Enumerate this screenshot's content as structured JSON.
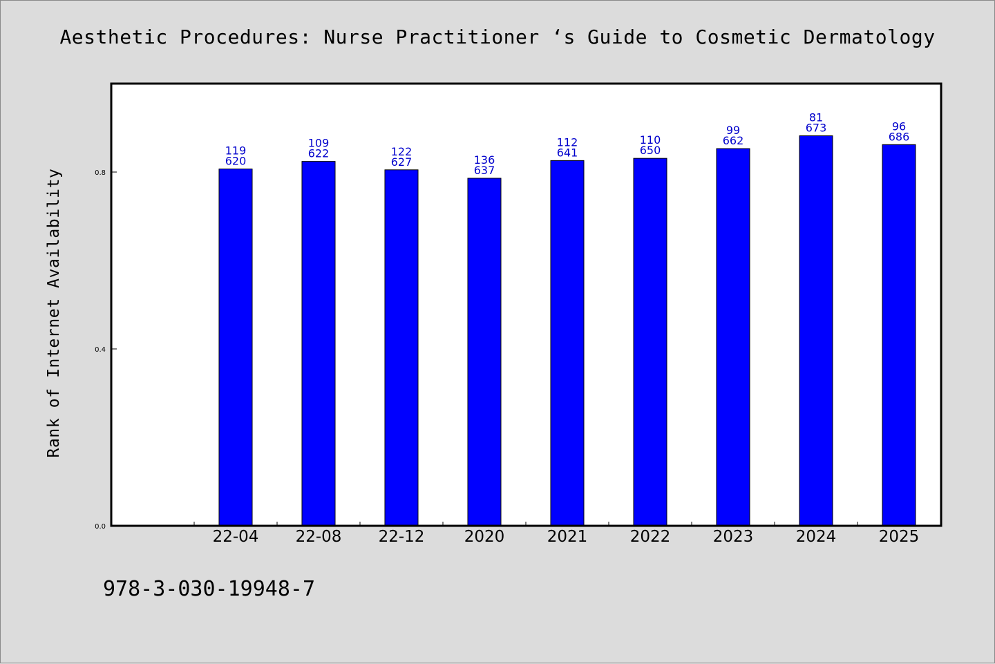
{
  "chart_data": {
    "type": "bar",
    "title": "Aesthetic Procedures: Nurse Practitioner ‘s Guide to Cosmetic Dermatology",
    "xlabel": "",
    "ylabel": "Rank of Internet Availability",
    "ylim": [
      0,
      1.0
    ],
    "yticks": [
      "0.0",
      "0.4",
      "0.8"
    ],
    "ytick_values": [
      0.0,
      0.4,
      0.8
    ],
    "categories": [
      "22-04",
      "22-08",
      "22-12",
      "2020",
      "2021",
      "2022",
      "2023",
      "2024",
      "2025"
    ],
    "values": [
      0.807,
      0.824,
      0.805,
      0.786,
      0.826,
      0.831,
      0.853,
      0.882,
      0.862
    ],
    "labels_top": [
      "119",
      "109",
      "122",
      "136",
      "112",
      "110",
      "99",
      "81",
      "96"
    ],
    "labels_bottom": [
      "620",
      "622",
      "627",
      "637",
      "641",
      "650",
      "662",
      "673",
      "686"
    ],
    "bar_color": "#0000ff",
    "label_color": "#0000cc",
    "grid": false,
    "legend": "none"
  },
  "footer": {
    "isbn": "978-3-030-19948-7"
  }
}
